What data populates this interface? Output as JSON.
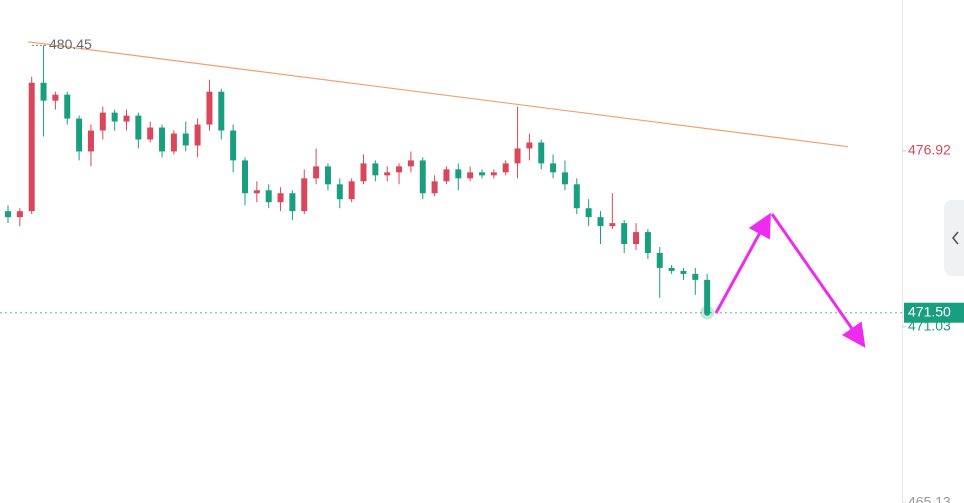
{
  "chart_data": {
    "type": "candlestick",
    "open": [
      474.9,
      474.7,
      474.9,
      479.2,
      478.6,
      478.8,
      478.0,
      476.9,
      477.6,
      478.2,
      477.9,
      478.1,
      477.3,
      477.7,
      476.9,
      477.5,
      477.1,
      477.8,
      478.9,
      477.6,
      476.6,
      475.5,
      475.6,
      475.2,
      475.5,
      474.9,
      476.0,
      476.4,
      475.8,
      475.3,
      475.9,
      476.5,
      476.1,
      476.2,
      476.4,
      476.6,
      475.5,
      475.9,
      476.3,
      476.0,
      476.2,
      476.1,
      476.2,
      476.5,
      477.0,
      477.2,
      476.5,
      476.2,
      475.8,
      475.0,
      474.7,
      474.4,
      474.5,
      473.8,
      474.2,
      473.5,
      473.0,
      472.9,
      472.8,
      472.6
    ],
    "high": [
      475.1,
      475.0,
      479.4,
      480.45,
      478.9,
      478.9,
      478.1,
      477.8,
      478.4,
      478.3,
      478.3,
      478.2,
      477.9,
      477.8,
      477.6,
      477.9,
      478.0,
      479.3,
      479.0,
      477.8,
      476.7,
      475.9,
      475.8,
      475.7,
      475.6,
      476.3,
      477.0,
      476.5,
      476.0,
      476.0,
      476.8,
      476.6,
      476.4,
      476.5,
      476.9,
      476.7,
      476.1,
      476.4,
      476.5,
      476.4,
      476.3,
      476.3,
      476.6,
      478.4,
      477.5,
      477.3,
      476.8,
      476.6,
      476.0,
      475.3,
      474.9,
      475.5,
      474.6,
      474.5,
      474.3,
      473.7,
      473.1,
      473.0,
      473.0,
      472.8
    ],
    "low": [
      474.5,
      474.4,
      474.8,
      477.4,
      478.3,
      477.8,
      476.6,
      476.4,
      477.3,
      477.6,
      477.6,
      477.0,
      477.2,
      476.7,
      476.8,
      476.9,
      476.7,
      477.6,
      477.3,
      476.2,
      475.1,
      475.2,
      475.0,
      474.9,
      474.6,
      474.8,
      475.8,
      475.6,
      475.0,
      475.2,
      475.8,
      475.9,
      475.9,
      475.8,
      476.2,
      475.3,
      475.4,
      475.8,
      475.6,
      475.9,
      476.0,
      476.0,
      476.1,
      476.0,
      476.6,
      476.3,
      476.0,
      475.6,
      474.8,
      474.4,
      473.8,
      474.3,
      473.5,
      473.6,
      473.3,
      472.0,
      472.8,
      472.6,
      472.1,
      471.5
    ],
    "close": [
      474.7,
      474.9,
      479.2,
      478.6,
      478.8,
      478.0,
      476.9,
      477.6,
      478.2,
      477.9,
      478.1,
      477.3,
      477.7,
      476.9,
      477.5,
      477.1,
      477.8,
      478.9,
      477.6,
      476.6,
      475.5,
      475.6,
      475.2,
      475.5,
      474.9,
      476.0,
      476.4,
      475.8,
      475.3,
      475.9,
      476.5,
      476.1,
      476.2,
      476.4,
      476.6,
      475.5,
      475.9,
      476.3,
      476.0,
      476.2,
      476.1,
      476.2,
      476.5,
      477.0,
      477.2,
      476.5,
      476.2,
      475.8,
      475.0,
      474.7,
      474.4,
      474.5,
      473.8,
      474.2,
      473.5,
      473.0,
      472.9,
      472.8,
      472.6,
      471.5
    ],
    "up_color": "#d9485a",
    "down_color": "#1a9e80",
    "ylim": [
      465.13,
      481.97
    ],
    "yticks": [
      476.92,
      471.03,
      465.13
    ],
    "max_label": 480.45,
    "last_price": {
      "value": 471.5,
      "label": "471.50"
    },
    "trendline": {
      "start": 480.57,
      "end": 477.06,
      "color": "#f5a06a"
    }
  }
}
